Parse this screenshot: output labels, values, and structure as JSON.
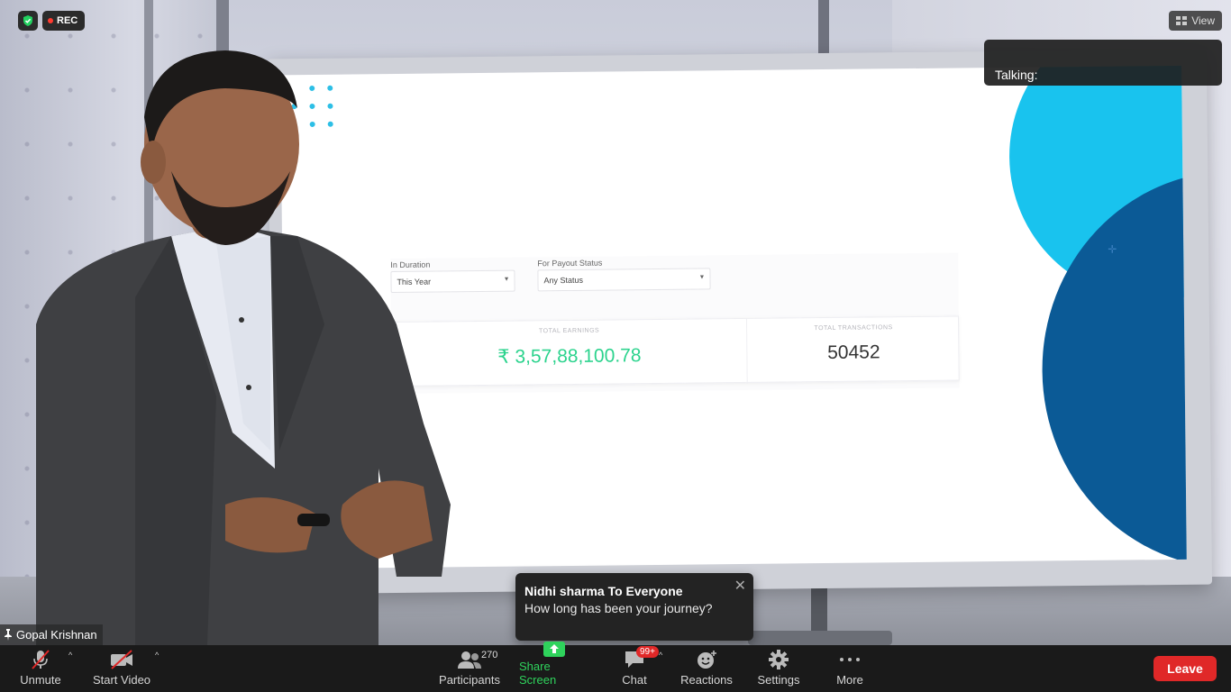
{
  "meeting": {
    "recording_label": "REC",
    "view_label": "View",
    "talking_label": "Talking:",
    "speaker_name": "Gopal Krishnan"
  },
  "presentation": {
    "filter_duration_label": "In Duration",
    "filter_duration_value": "This Year",
    "filter_status_label": "For Payout Status",
    "filter_status_value": "Any Status",
    "stat_earnings_caption": "TOTAL EARNINGS",
    "stat_earnings_value": "₹ 3,57,88,100.78",
    "stat_transactions_caption": "TOTAL TRANSACTIONS",
    "stat_transactions_value": "50452",
    "colors": {
      "accent_green": "#2bd38d",
      "circle_light": "#19c3ee",
      "circle_dark": "#0b5a96"
    }
  },
  "chat_toast": {
    "from": "Nidhi sharma To Everyone",
    "message": "How long has been your journey?",
    "close_icon": "close-icon"
  },
  "toolbar": {
    "unmute": "Unmute",
    "start_video": "Start Video",
    "participants": "Participants",
    "participants_count": "270",
    "share_screen": "Share Screen",
    "chat": "Chat",
    "chat_badge": "99+",
    "reactions": "Reactions",
    "settings": "Settings",
    "more": "More",
    "leave": "Leave",
    "colors": {
      "leave": "#e02828",
      "share": "#2fd35c"
    }
  }
}
